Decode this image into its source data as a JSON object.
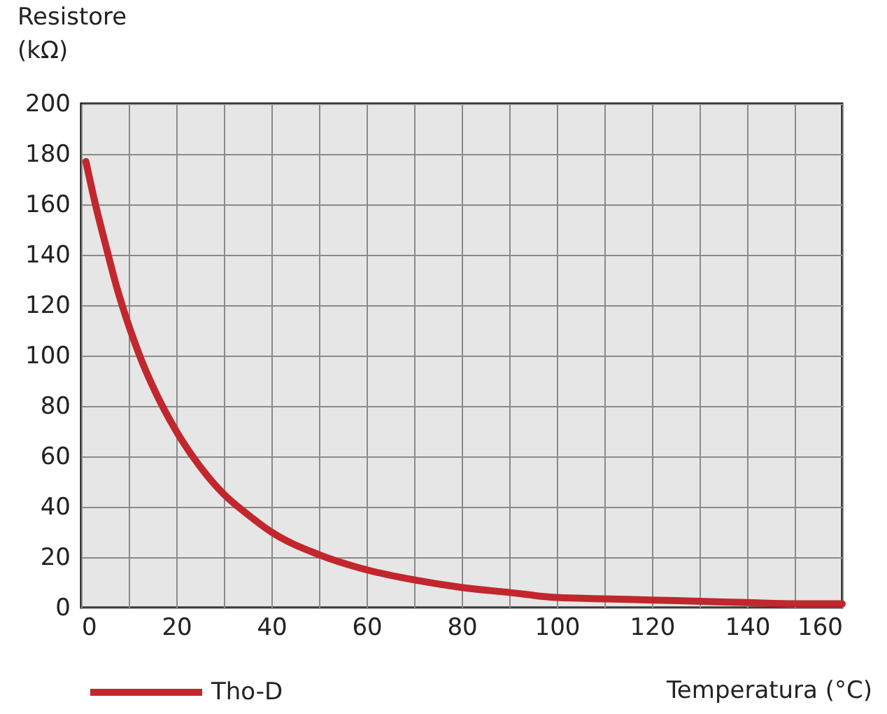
{
  "chart_data": {
    "type": "line",
    "xlabel": "Temperatura (°C)",
    "ylabel": "Resistore\n(kΩ)",
    "x": [
      1,
      3,
      5,
      7.5,
      10,
      12.5,
      15,
      20,
      25,
      30,
      35,
      40,
      50,
      60,
      70,
      80,
      90,
      100,
      110,
      120,
      130,
      140,
      150,
      160
    ],
    "series": [
      {
        "name": "Tho-D",
        "color": "#c1272d",
        "values": [
          177,
          160,
          145,
          127,
          112,
          99,
          88,
          70,
          56,
          45,
          37,
          30,
          21,
          15,
          11,
          8,
          6,
          4,
          3.5,
          3,
          2.5,
          2,
          1.5,
          1.5
        ]
      }
    ],
    "xlim": [
      0,
      160
    ],
    "xticks": [
      0,
      {
        "value": 10,
        "label": null
      },
      20,
      {
        "value": 30,
        "label": null
      },
      40,
      {
        "value": 50,
        "label": null
      },
      60,
      {
        "value": 70,
        "label": null
      },
      80,
      {
        "value": 90,
        "label": null
      },
      100,
      {
        "value": 110,
        "label": null
      },
      120,
      {
        "value": 130,
        "label": null
      },
      140,
      {
        "value": 150,
        "label": null
      },
      160
    ],
    "ylim": [
      0,
      200
    ],
    "yticks": [
      0,
      20,
      40,
      60,
      80,
      100,
      120,
      140,
      160,
      180,
      200
    ],
    "grid": true,
    "legend": "bottom left",
    "marker": "none",
    "line_style": "solid"
  }
}
